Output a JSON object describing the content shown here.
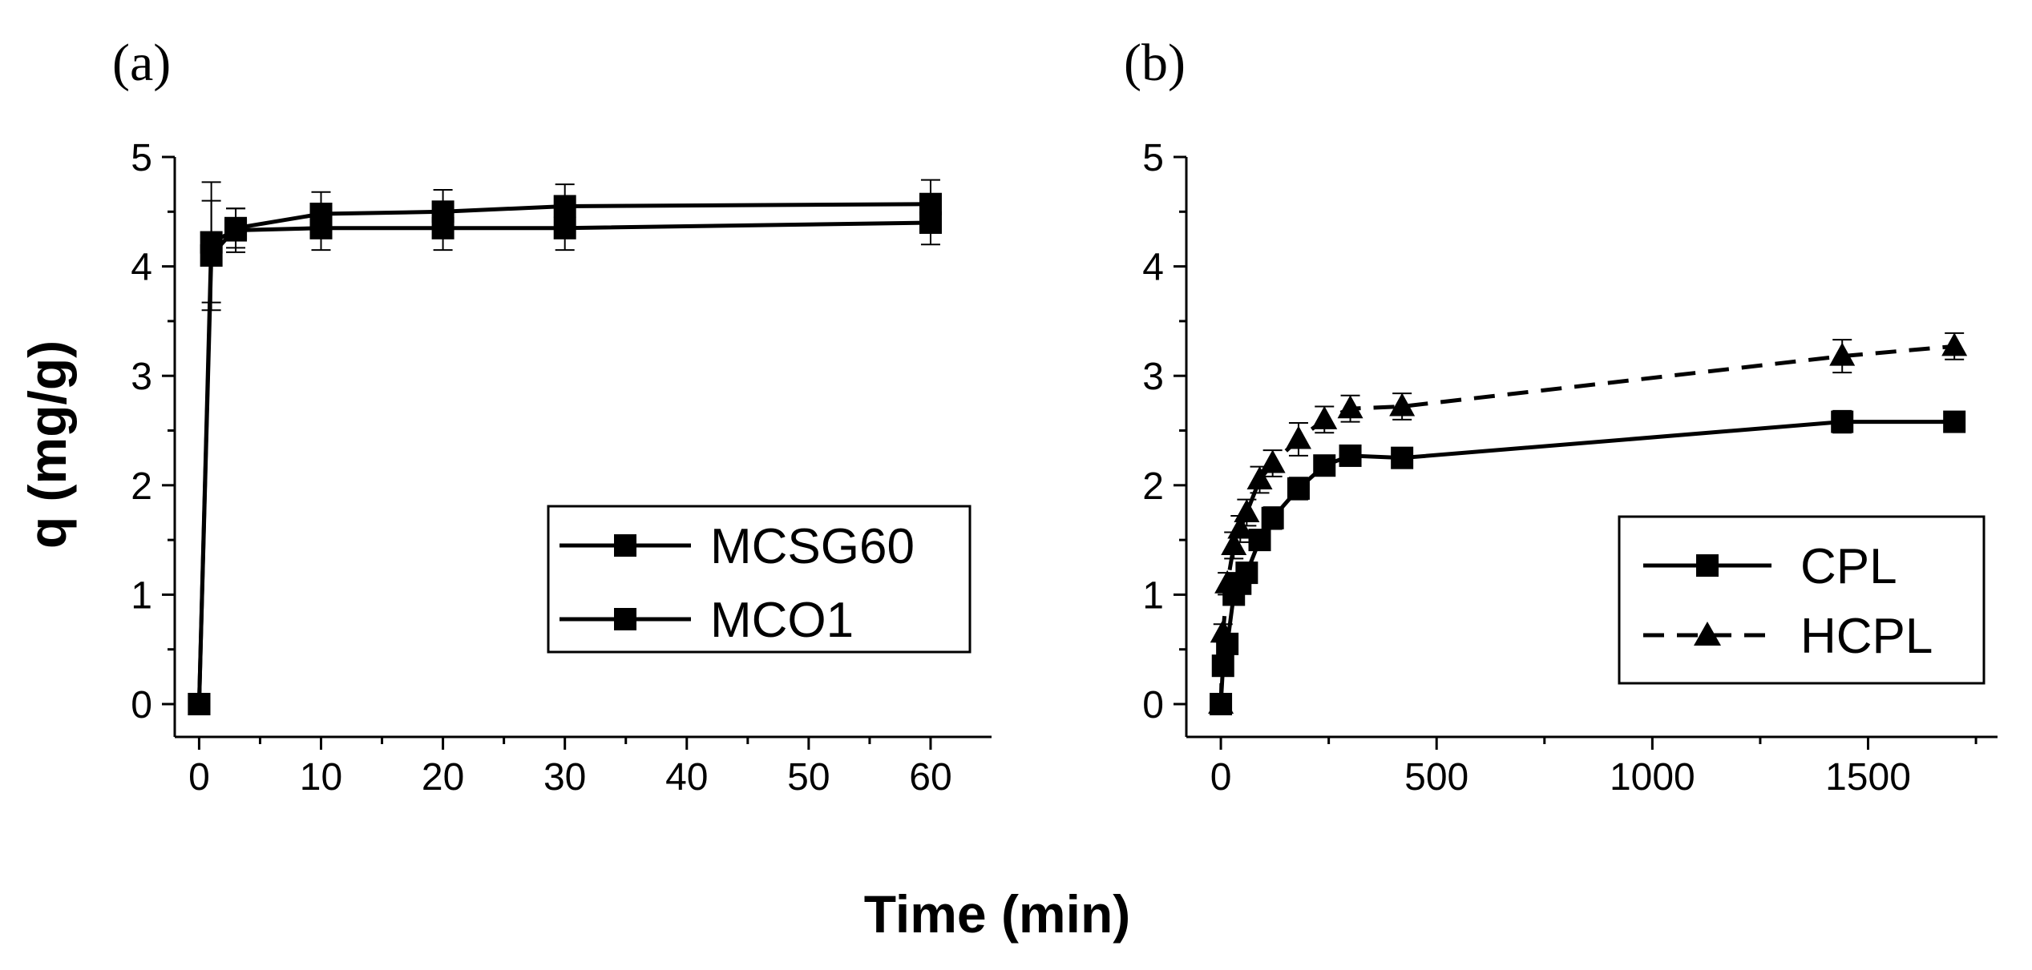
{
  "figure": {
    "shared_xlabel": "Time (min)",
    "shared_ylabel": "q (mg/g)"
  },
  "chart_data": [
    {
      "panel": "(a)",
      "type": "line",
      "xlim": [
        -2,
        65
      ],
      "ylim": [
        -0.3,
        5
      ],
      "xticks": [
        0,
        10,
        20,
        30,
        40,
        50,
        60
      ],
      "xtick_labels": [
        "0",
        "10",
        "20",
        "30",
        "40",
        "50",
        "60"
      ],
      "yticks": [
        0,
        1,
        2,
        3,
        4,
        5
      ],
      "ytick_labels": [
        "0",
        "1",
        "2",
        "3",
        "4",
        "5"
      ],
      "legend_position": "bottom-right",
      "series": [
        {
          "name": "MCSG60",
          "marker": "square",
          "dash": "solid",
          "x": [
            0,
            1,
            3,
            10,
            20,
            30,
            60
          ],
          "y": [
            0,
            4.22,
            4.33,
            4.35,
            4.35,
            4.35,
            4.4
          ],
          "err": [
            0,
            0.55,
            0.2,
            0.2,
            0.2,
            0.2,
            0.2
          ]
        },
        {
          "name": "MCO1",
          "marker": "square",
          "dash": "solid",
          "x": [
            0,
            1,
            3,
            10,
            20,
            30,
            60
          ],
          "y": [
            0,
            4.1,
            4.35,
            4.48,
            4.5,
            4.55,
            4.57
          ],
          "err": [
            0,
            0.5,
            0.18,
            0.2,
            0.2,
            0.2,
            0.22
          ]
        }
      ]
    },
    {
      "panel": "(b)",
      "type": "line",
      "xlim": [
        -80,
        1800
      ],
      "ylim": [
        -0.3,
        5
      ],
      "xticks": [
        0,
        500,
        1000,
        1500
      ],
      "xtick_labels": [
        "0",
        "500",
        "1000",
        "1500"
      ],
      "yticks": [
        0,
        1,
        2,
        3,
        4,
        5
      ],
      "ytick_labels": [
        "0",
        "1",
        "2",
        "3",
        "4",
        "5"
      ],
      "legend_position": "bottom-right",
      "series": [
        {
          "name": "CPL",
          "marker": "square",
          "dash": "solid",
          "x": [
            0,
            5,
            15,
            30,
            45,
            60,
            90,
            120,
            180,
            240,
            300,
            420,
            1440,
            1700
          ],
          "y": [
            0,
            0.35,
            0.55,
            1.0,
            1.1,
            1.2,
            1.5,
            1.7,
            1.97,
            2.18,
            2.27,
            2.25,
            2.58,
            2.58
          ],
          "err": [
            0,
            0.05,
            0.05,
            0.08,
            0.08,
            0.08,
            0.08,
            0.1,
            0.1,
            0.08,
            0.08,
            0.06,
            0.1,
            0.08
          ]
        },
        {
          "name": "HCPL",
          "marker": "triangle",
          "dash": "dashed",
          "x": [
            0,
            5,
            15,
            30,
            45,
            60,
            90,
            120,
            180,
            240,
            300,
            420,
            1440,
            1700
          ],
          "y": [
            0,
            0.65,
            1.1,
            1.45,
            1.6,
            1.75,
            2.05,
            2.2,
            2.42,
            2.6,
            2.7,
            2.72,
            3.18,
            3.27
          ],
          "err": [
            0,
            0.08,
            0.1,
            0.12,
            0.12,
            0.12,
            0.12,
            0.12,
            0.15,
            0.12,
            0.12,
            0.12,
            0.15,
            0.12
          ]
        }
      ]
    }
  ]
}
